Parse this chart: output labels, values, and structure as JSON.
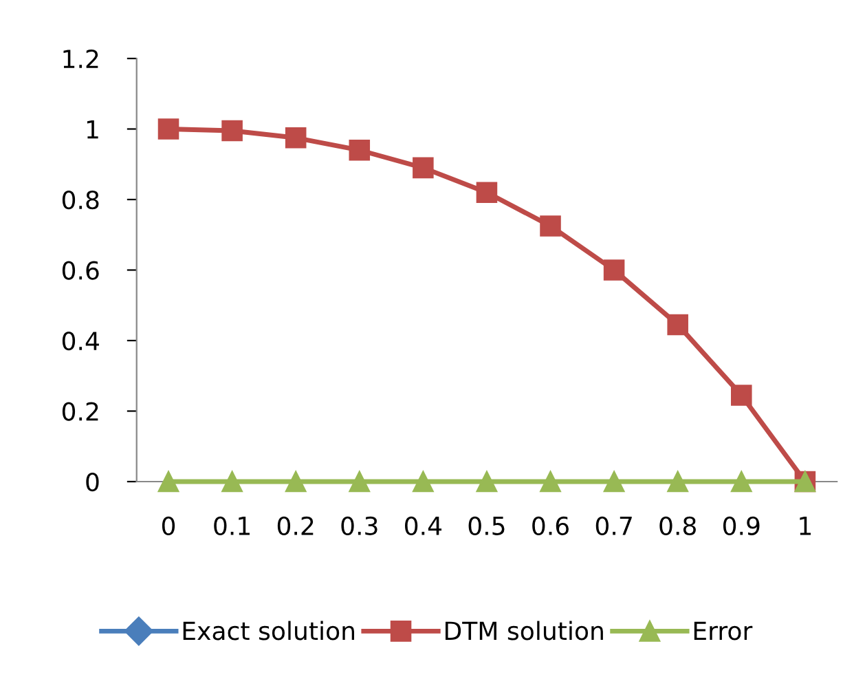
{
  "chart_data": {
    "type": "line",
    "categories": [
      "0",
      "0.1",
      "0.2",
      "0.3",
      "0.4",
      "0.5",
      "0.6",
      "0.7",
      "0.8",
      "0.9",
      "1"
    ],
    "series": [
      {
        "name": "Exact solution",
        "color": "#4a7ebb",
        "marker": "diamond",
        "values": [
          null,
          null,
          null,
          null,
          null,
          null,
          null,
          null,
          null,
          null,
          null
        ]
      },
      {
        "name": "DTM solution",
        "color": "#be4b48",
        "marker": "square",
        "values": [
          1,
          0.995,
          0.975,
          0.94,
          0.89,
          0.82,
          0.725,
          0.6,
          0.445,
          0.245,
          0
        ]
      },
      {
        "name": "Error",
        "color": "#98b954",
        "marker": "triangle",
        "values": [
          0,
          0,
          0,
          0,
          0,
          0,
          0,
          0,
          0,
          0,
          0
        ]
      }
    ],
    "ylim": [
      0,
      1.2
    ],
    "yticks": [
      0,
      0.2,
      0.4,
      0.6,
      0.8,
      1,
      1.2
    ],
    "grid": false,
    "legend": "bottom",
    "line_style": "solid"
  }
}
